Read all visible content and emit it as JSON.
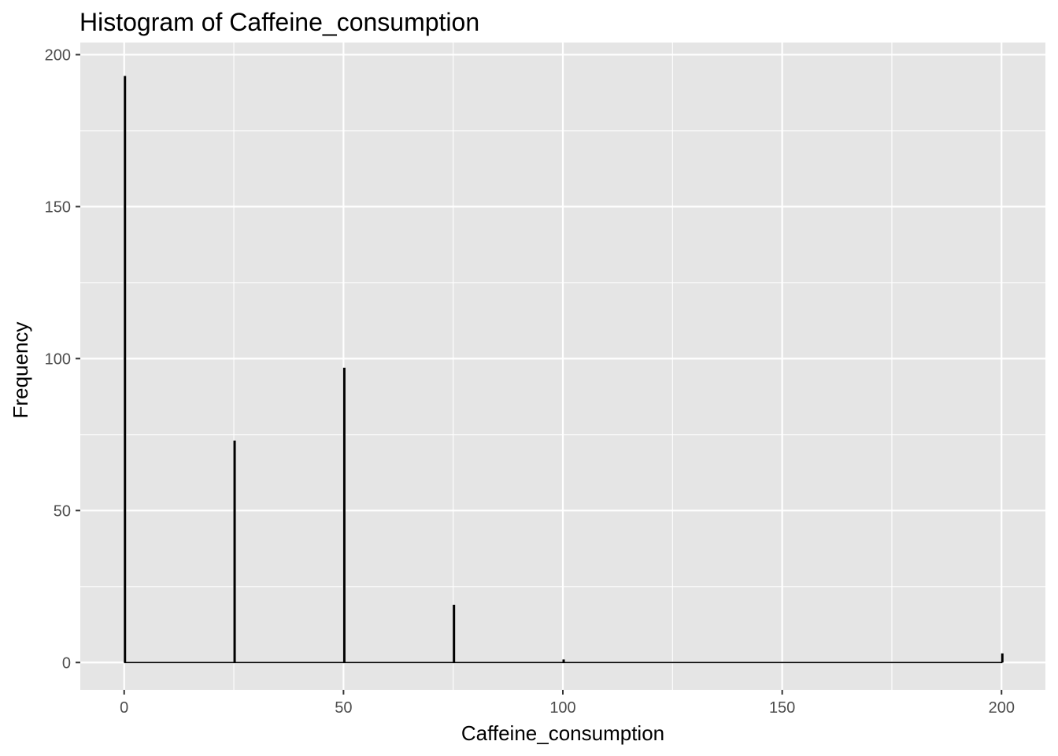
{
  "chart_data": {
    "type": "bar",
    "title": "Histogram of Caffeine_consumption",
    "xlabel": "Caffeine_consumption",
    "ylabel": "Frequency",
    "xlim": [
      -10,
      210
    ],
    "ylim": [
      -9,
      204
    ],
    "x_ticks": [
      0,
      50,
      100,
      150,
      200
    ],
    "x_minor_ticks": [
      25,
      75,
      125,
      175
    ],
    "y_ticks": [
      0,
      50,
      100,
      150,
      200
    ],
    "y_minor_ticks": [
      25,
      75,
      125,
      175
    ],
    "bin_width": 0.2,
    "bins": [
      {
        "x": 0,
        "count": 193
      },
      {
        "x": 25,
        "count": 73
      },
      {
        "x": 50,
        "count": 97
      },
      {
        "x": 75,
        "count": 19
      },
      {
        "x": 100,
        "count": 1
      },
      {
        "x": 200,
        "count": 3
      }
    ],
    "grid": true,
    "legend": "none",
    "colors": {
      "panel": "#e5e5e5",
      "grid": "#ffffff",
      "bar_fill": "#000000",
      "bar_outline": "#000000",
      "tick_text": "#4d4d4d",
      "tick_mark": "#333333"
    }
  }
}
